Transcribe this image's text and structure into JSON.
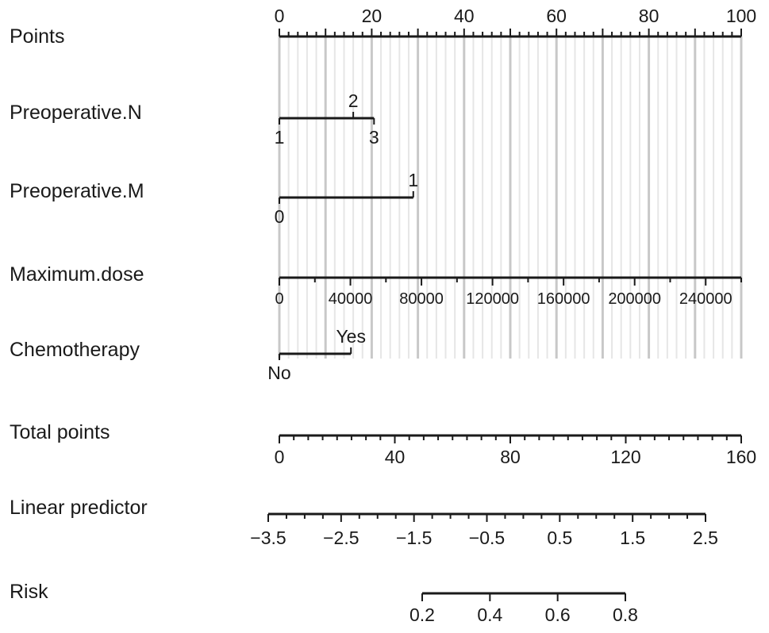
{
  "chart_data": {
    "type": "nomogram",
    "rows": [
      {
        "key": "points",
        "label": "Points",
        "kind": "axis",
        "min": 0,
        "max": 100,
        "labels": [
          0,
          20,
          40,
          60,
          80,
          100
        ],
        "minor_step": 2,
        "major_step": 10,
        "label_position": "above"
      },
      {
        "key": "preop_n",
        "label": "Preoperative.N",
        "kind": "categorical",
        "levels": [
          {
            "label": "1",
            "points": 0,
            "label_side": "below"
          },
          {
            "label": "2",
            "points": 16,
            "label_side": "above"
          },
          {
            "label": "3",
            "points": 20.5,
            "label_side": "below"
          }
        ]
      },
      {
        "key": "preop_m",
        "label": "Preoperative.M",
        "kind": "categorical",
        "levels": [
          {
            "label": "0",
            "points": 0,
            "label_side": "below"
          },
          {
            "label": "1",
            "points": 29,
            "label_side": "above"
          }
        ]
      },
      {
        "key": "max_dose",
        "label": "Maximum.dose",
        "kind": "axis",
        "min": 0,
        "max": 260000,
        "labels": [
          "0",
          "40000",
          "80000",
          "120000",
          "160000",
          "200000",
          "240000"
        ],
        "label_values": [
          0,
          40000,
          80000,
          120000,
          160000,
          200000,
          240000
        ],
        "minor_step": 20000,
        "points_at_max": 100,
        "label_position": "below"
      },
      {
        "key": "chemo",
        "label": "Chemotherapy",
        "kind": "categorical",
        "levels": [
          {
            "label": "No",
            "points": 0,
            "label_side": "below"
          },
          {
            "label": "Yes",
            "points": 15.5,
            "label_side": "above"
          }
        ]
      },
      {
        "key": "total_points",
        "label": "Total points",
        "kind": "axis",
        "min": 0,
        "max": 160,
        "labels": [
          "0",
          "40",
          "80",
          "120",
          "160"
        ],
        "label_values": [
          0,
          40,
          80,
          120,
          160
        ],
        "minor_step": 5,
        "label_position": "below"
      },
      {
        "key": "linear_predictor",
        "label": "Linear predictor",
        "kind": "axis",
        "min": -3.5,
        "max": 2.5,
        "labels": [
          "−3.5",
          "−2.5",
          "−1.5",
          "−0.5",
          "0.5",
          "1.5",
          "2.5"
        ],
        "label_values": [
          -3.5,
          -2.5,
          -1.5,
          -0.5,
          0.5,
          1.5,
          2.5
        ],
        "minor_step": 0.25,
        "label_position": "below"
      },
      {
        "key": "risk",
        "label": "Risk",
        "kind": "axis",
        "min": 0.2,
        "max": 0.8,
        "labels": [
          "0.2",
          "0.4",
          "0.6",
          "0.8"
        ],
        "label_values": [
          0.2,
          0.4,
          0.6,
          0.8
        ],
        "tick_values": [
          0.2,
          0.4,
          0.6,
          0.8
        ],
        "label_position": "below"
      }
    ],
    "grid": true
  }
}
